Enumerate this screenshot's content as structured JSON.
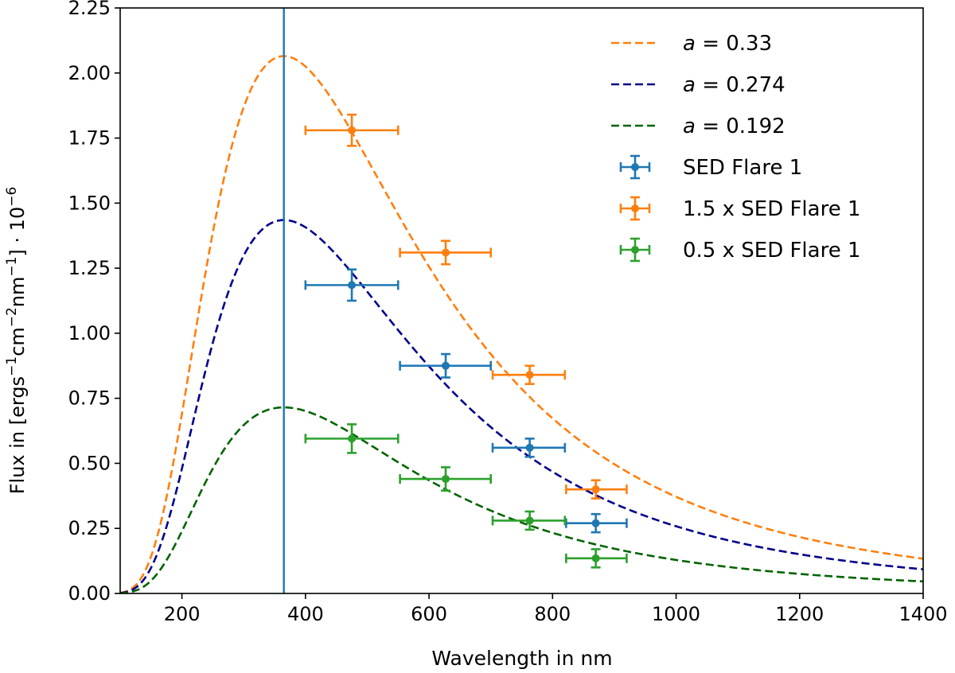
{
  "chart_data": {
    "type": "line",
    "title": "",
    "xlabel": "Wavelength in nm",
    "ylabel": {
      "prefix": "Flux in [ergs",
      "parts": [
        {
          "t": "−1",
          "sup": true
        },
        {
          "t": "cm",
          "sup": false
        },
        {
          "t": "−2",
          "sup": true
        },
        {
          "t": "nm",
          "sup": false
        },
        {
          "t": "−1",
          "sup": true
        },
        {
          "t": "] · 10",
          "sup": false
        },
        {
          "t": "−6",
          "sup": true
        }
      ]
    },
    "xlim": [
      100,
      1400
    ],
    "ylim": [
      0,
      2.25
    ],
    "xticks": [
      200,
      400,
      600,
      800,
      1000,
      1200,
      1400
    ],
    "yticks": [
      0.0,
      0.25,
      0.5,
      0.75,
      1.0,
      1.25,
      1.5,
      1.75,
      2.0,
      2.25
    ],
    "xtick_labels": [
      "200",
      "400",
      "600",
      "800",
      "1000",
      "1200",
      "1400"
    ],
    "ytick_labels": [
      "0.00",
      "0.25",
      "0.50",
      "0.75",
      "1.00",
      "1.25",
      "1.50",
      "1.75",
      "2.00",
      "2.25"
    ],
    "grid": false,
    "vline": {
      "x": 365,
      "color": "#1f77b4"
    },
    "curves": [
      {
        "name": "a = 0.33",
        "symbol": "a",
        "value": "0.33",
        "color": "#ff7f0e",
        "peak_x": 365,
        "peak_y": 2.065
      },
      {
        "name": "a = 0.274",
        "symbol": "a",
        "value": "0.274",
        "color": "#00008b",
        "peak_x": 365,
        "peak_y": 1.435
      },
      {
        "name": "a = 0.192",
        "symbol": "a",
        "value": "0.192",
        "color": "#006400",
        "peak_x": 365,
        "peak_y": 0.715
      }
    ],
    "series": [
      {
        "name": "SED Flare 1",
        "color": "#1f77b4",
        "points": [
          {
            "x": 475,
            "y": 1.185,
            "xerr": [
              400,
              550
            ],
            "yerr": 0.06
          },
          {
            "x": 627,
            "y": 0.875,
            "xerr": [
              553,
              700
            ],
            "yerr": 0.045
          },
          {
            "x": 763,
            "y": 0.56,
            "xerr": [
              703,
              820
            ],
            "yerr": 0.035
          },
          {
            "x": 870,
            "y": 0.27,
            "xerr": [
              822,
              920
            ],
            "yerr": 0.035
          }
        ]
      },
      {
        "name": "1.5 x SED Flare 1",
        "color": "#ff7f0e",
        "points": [
          {
            "x": 475,
            "y": 1.78,
            "xerr": [
              400,
              550
            ],
            "yerr": 0.06
          },
          {
            "x": 627,
            "y": 1.31,
            "xerr": [
              553,
              700
            ],
            "yerr": 0.045
          },
          {
            "x": 763,
            "y": 0.84,
            "xerr": [
              703,
              820
            ],
            "yerr": 0.035
          },
          {
            "x": 870,
            "y": 0.4,
            "xerr": [
              822,
              920
            ],
            "yerr": 0.035
          }
        ]
      },
      {
        "name": "0.5 x SED Flare 1",
        "color": "#2ca02c",
        "points": [
          {
            "x": 475,
            "y": 0.595,
            "xerr": [
              400,
              550
            ],
            "yerr": 0.055
          },
          {
            "x": 627,
            "y": 0.44,
            "xerr": [
              553,
              700
            ],
            "yerr": 0.045
          },
          {
            "x": 763,
            "y": 0.28,
            "xerr": [
              703,
              820
            ],
            "yerr": 0.035
          },
          {
            "x": 870,
            "y": 0.135,
            "xerr": [
              822,
              920
            ],
            "yerr": 0.035
          }
        ]
      }
    ],
    "legend_position": "top-right"
  }
}
